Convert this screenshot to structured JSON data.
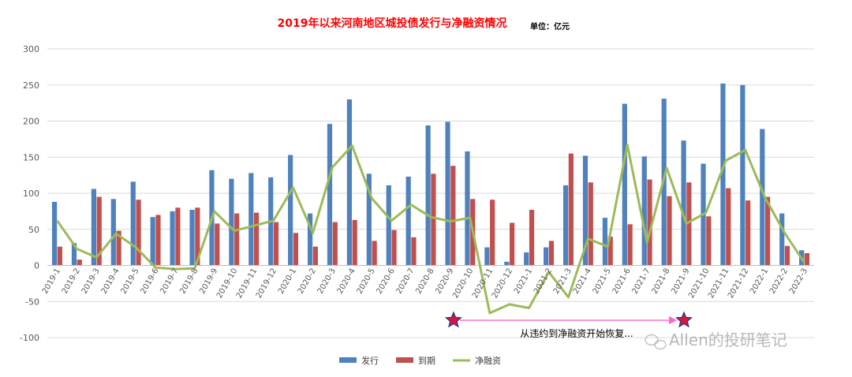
{
  "chart_data": {
    "type": "bar",
    "title": "2019年以来河南地区城投债发行与净融资情况",
    "unit": "单位：亿元",
    "ylim": [
      -100,
      300
    ],
    "y_ticks": [
      -100,
      -50,
      0,
      50,
      100,
      150,
      200,
      250,
      300
    ],
    "grid": true,
    "legend_position": "bottom",
    "categories": [
      "2019-1",
      "2019-2",
      "2019-3",
      "2019-4",
      "2019-5",
      "2019-6",
      "2019-7",
      "2019-8",
      "2019-9",
      "2019-10",
      "2019-11",
      "2019-12",
      "2020-1",
      "2020-2",
      "2020-3",
      "2020-4",
      "2020-5",
      "2020-6",
      "2020-7",
      "2020-8",
      "2020-9",
      "2020-10",
      "2020-11",
      "2020-12",
      "2021-1",
      "2021-2",
      "2021-3",
      "2021-4",
      "2021-5",
      "2021-6",
      "2021-7",
      "2021-8",
      "2021-9",
      "2021-10",
      "2021-11",
      "2021-12",
      "2022-1",
      "2022-2",
      "2022-3"
    ],
    "series": [
      {
        "name": "发行",
        "type": "bar",
        "color": "#4f81bd",
        "values": [
          88,
          31,
          106,
          92,
          116,
          67,
          75,
          77,
          132,
          120,
          128,
          122,
          153,
          72,
          196,
          230,
          127,
          111,
          123,
          194,
          199,
          158,
          25,
          5,
          18,
          25,
          111,
          152,
          66,
          224,
          151,
          231,
          173,
          141,
          252,
          250,
          189,
          72,
          21
        ]
      },
      {
        "name": "到期",
        "type": "bar",
        "color": "#c0504d",
        "values": [
          26,
          8,
          95,
          48,
          91,
          70,
          80,
          80,
          58,
          72,
          73,
          60,
          45,
          26,
          60,
          63,
          34,
          49,
          39,
          127,
          138,
          92,
          91,
          59,
          77,
          34,
          155,
          115,
          40,
          57,
          119,
          96,
          115,
          68,
          107,
          90,
          95,
          27,
          17
        ]
      },
      {
        "name": "净融资",
        "type": "line",
        "color": "#9bbb59",
        "values": [
          62,
          23,
          11,
          44,
          25,
          -3,
          -5,
          -4,
          75,
          48,
          55,
          62,
          108,
          45,
          136,
          166,
          93,
          62,
          84,
          67,
          61,
          66,
          -66,
          -54,
          -59,
          -9,
          -44,
          37,
          26,
          167,
          32,
          135,
          58,
          73,
          145,
          160,
          94,
          45,
          4
        ]
      }
    ],
    "annotation": {
      "text": "从违约到净融资开始恢复...",
      "from_category": "2020-9",
      "to_category": "2021-9",
      "y": -76
    },
    "watermark": "Allen的投研笔记"
  }
}
